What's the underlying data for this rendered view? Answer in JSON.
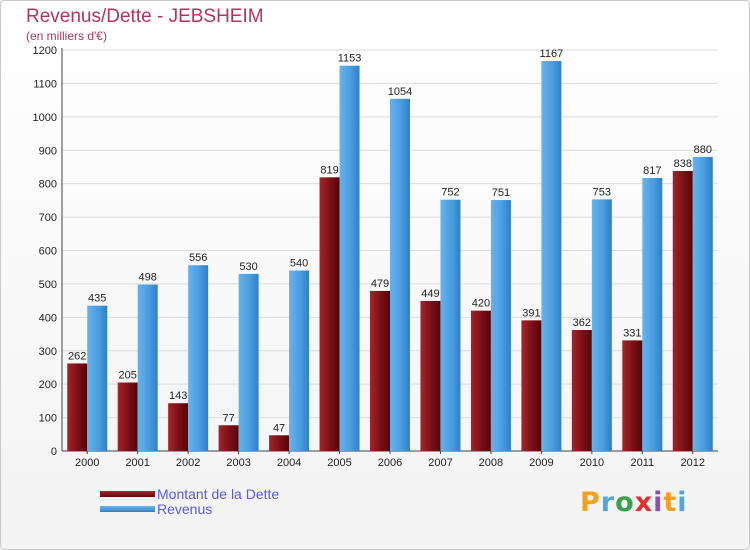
{
  "colors": {
    "dette": "#7a0f15",
    "revenus": "#3f95d9",
    "title": "#b0355b",
    "legend_text": "#5a5adf"
  },
  "chart_data": {
    "type": "bar",
    "title": "Revenus/Dette - JEBSHEIM",
    "subtitle": "(en milliers d'€)",
    "categories": [
      "2000",
      "2001",
      "2002",
      "2003",
      "2004",
      "2005",
      "2006",
      "2007",
      "2008",
      "2009",
      "2010",
      "2011",
      "2012"
    ],
    "series": [
      {
        "name": "Montant de la Dette",
        "values": [
          262,
          205,
          143,
          77,
          47,
          819,
          479,
          449,
          420,
          391,
          362,
          331,
          838
        ]
      },
      {
        "name": "Revenus",
        "values": [
          435,
          498,
          556,
          530,
          540,
          1153,
          1054,
          752,
          751,
          1167,
          753,
          817,
          880
        ]
      }
    ],
    "ylim": [
      0,
      1200
    ],
    "yticks": [
      0,
      100,
      200,
      300,
      400,
      500,
      600,
      700,
      800,
      900,
      1000,
      1100,
      1200
    ],
    "grid": true,
    "legend": "bottom-left"
  },
  "brand": {
    "letters": [
      "P",
      "r",
      "o",
      "x",
      "i",
      "t",
      "i"
    ],
    "colors": [
      "#f3a11c",
      "#52a8dc",
      "#3aa04a",
      "#e1302b",
      "#8a4fb3",
      "#f3a11c",
      "#52a8dc"
    ]
  }
}
